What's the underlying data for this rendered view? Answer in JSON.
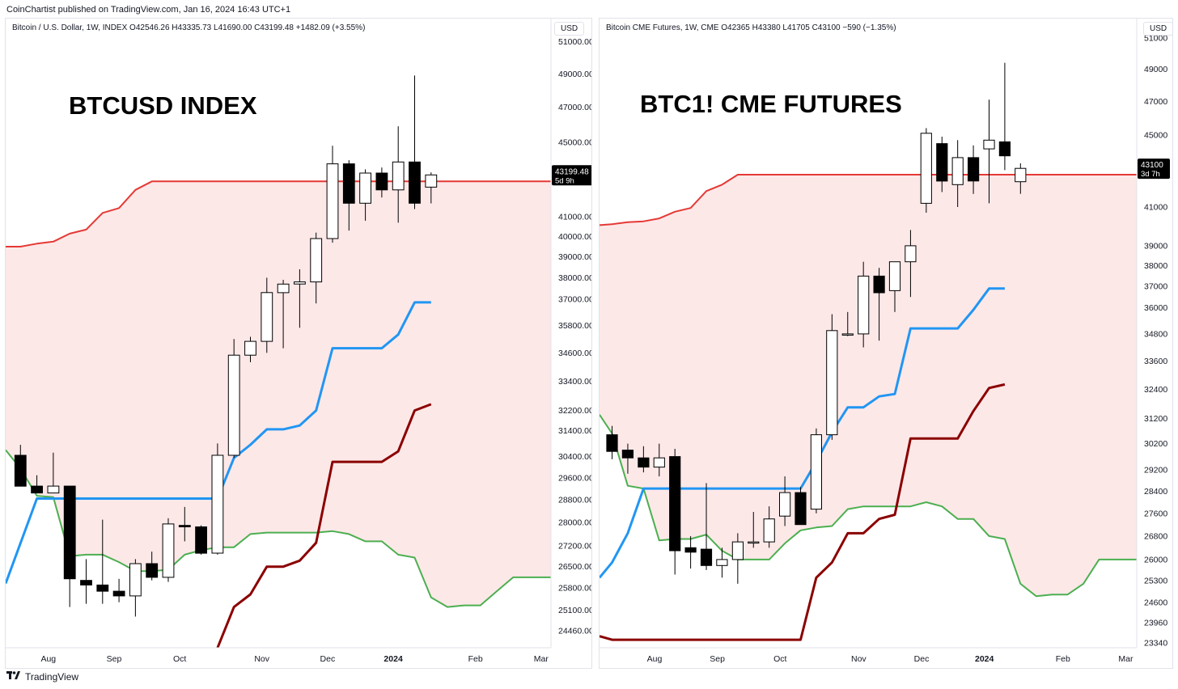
{
  "publish_line": "CoinChartist published on TradingView.com, Jan 16, 2024 16:43 UTC+1",
  "footer": {
    "brand": "TradingView",
    "logo_icon": "tradingview-logo-icon"
  },
  "colors": {
    "base": "#e53935",
    "span_b_fill": "#fde8e8",
    "conversion": "#2196f3",
    "lagging": "#8b0000",
    "span_a": "#4caf50",
    "candle_down": "#000000",
    "candle_up": "#ffffff"
  },
  "chart_data": [
    {
      "type": "candlestick",
      "legend": "Bitcoin / U.S. Dollar, 1W, INDEX  O42546.26  H43335.73  L41690.00  C43199.48  +1482.09 (+3.55%)",
      "currency": "USD",
      "title": "BTCUSD INDEX",
      "last_price": "43199.48",
      "last_timer": "5d 9h",
      "y_ticks": [
        "51000.00",
        "49000.00",
        "47000.00",
        "45000.00",
        "41000.00",
        "40000.00",
        "39000.00",
        "38000.00",
        "37000.00",
        "35800.00",
        "34600.00",
        "33400.00",
        "32200.00",
        "31400.00",
        "30400.00",
        "29600.00",
        "28800.00",
        "28000.00",
        "27200.00",
        "26500.00",
        "25800.00",
        "25100.00",
        "24460.00"
      ],
      "y_tick_values": [
        51000,
        49000,
        47000,
        45000,
        41000,
        40000,
        39000,
        38000,
        37000,
        35800,
        34600,
        33400,
        32200,
        31400,
        30400,
        29600,
        28800,
        28000,
        27200,
        26500,
        25800,
        25100,
        24460
      ],
      "ylim": [
        23950,
        52500
      ],
      "scale": "log",
      "x_ticks": [
        "Aug",
        "Sep",
        "Oct",
        "Nov",
        "Dec",
        "2024",
        "Feb",
        "Mar"
      ],
      "x_tick_index": [
        2.2,
        6.2,
        10.2,
        15.2,
        19.2,
        23.2,
        28.2,
        32.2
      ],
      "xlim": [
        -0.4,
        32.8
      ],
      "candles": [
        {
          "o": 30450,
          "h": 30850,
          "l": 29400,
          "c": 29300
        },
        {
          "o": 29300,
          "h": 29700,
          "l": 29050,
          "c": 29050
        },
        {
          "o": 29050,
          "h": 30550,
          "l": 29050,
          "c": 29300
        },
        {
          "o": 29300,
          "h": 29300,
          "l": 25200,
          "c": 26100
        },
        {
          "o": 26050,
          "h": 26750,
          "l": 25300,
          "c": 25900
        },
        {
          "o": 25900,
          "h": 28100,
          "l": 25300,
          "c": 25700
        },
        {
          "o": 25700,
          "h": 26100,
          "l": 25350,
          "c": 25550
        },
        {
          "o": 25550,
          "h": 26750,
          "l": 24900,
          "c": 26600
        },
        {
          "o": 26600,
          "h": 27000,
          "l": 26050,
          "c": 26150
        },
        {
          "o": 26150,
          "h": 28150,
          "l": 26000,
          "c": 27950
        },
        {
          "o": 27900,
          "h": 28550,
          "l": 27350,
          "c": 27850
        },
        {
          "o": 27850,
          "h": 27900,
          "l": 26900,
          "c": 26950
        },
        {
          "o": 26950,
          "h": 30900,
          "l": 26900,
          "c": 30450
        },
        {
          "o": 30450,
          "h": 35200,
          "l": 30350,
          "c": 34500
        },
        {
          "o": 34500,
          "h": 35300,
          "l": 34200,
          "c": 35100
        },
        {
          "o": 35100,
          "h": 38000,
          "l": 34600,
          "c": 37300
        },
        {
          "o": 37300,
          "h": 37900,
          "l": 34800,
          "c": 37700
        },
        {
          "o": 37700,
          "h": 38400,
          "l": 35700,
          "c": 37800
        },
        {
          "o": 37800,
          "h": 40200,
          "l": 36800,
          "c": 39900
        },
        {
          "o": 39900,
          "h": 44800,
          "l": 39700,
          "c": 43800
        },
        {
          "o": 43800,
          "h": 44000,
          "l": 40300,
          "c": 41700
        },
        {
          "o": 41700,
          "h": 43500,
          "l": 40800,
          "c": 43300
        },
        {
          "o": 43300,
          "h": 43600,
          "l": 42000,
          "c": 42400
        },
        {
          "o": 42400,
          "h": 45900,
          "l": 40700,
          "c": 43900
        },
        {
          "o": 43900,
          "h": 48900,
          "l": 41400,
          "c": 41700
        },
        {
          "o": 42546,
          "h": 43336,
          "l": 41690,
          "c": 43199
        }
      ],
      "ichimoku": {
        "base_line": [
          [
            -0.4,
            39500
          ],
          [
            0.5,
            39500
          ],
          [
            1.5,
            39650
          ],
          [
            2.5,
            39750
          ],
          [
            3.5,
            40150
          ],
          [
            4.5,
            40350
          ],
          [
            5.5,
            41200
          ],
          [
            6.5,
            41450
          ],
          [
            7.5,
            42400
          ],
          [
            8.5,
            42850
          ],
          [
            32.8,
            42850
          ]
        ],
        "conversion_line": [
          [
            -0.4,
            25950
          ],
          [
            1.5,
            28850
          ],
          [
            2.5,
            28850
          ],
          [
            12.5,
            28850
          ],
          [
            13.5,
            30350
          ],
          [
            14.5,
            30850
          ],
          [
            15.5,
            31450
          ],
          [
            16.5,
            31450
          ],
          [
            17.5,
            31600
          ],
          [
            18.5,
            32200
          ],
          [
            19.5,
            34800
          ],
          [
            20.5,
            34800
          ],
          [
            22.5,
            34800
          ],
          [
            23.5,
            35400
          ],
          [
            24.5,
            36850
          ],
          [
            25.5,
            36850
          ]
        ],
        "lagging_line": [
          [
            12.5,
            23950
          ],
          [
            13.5,
            25200
          ],
          [
            14.5,
            25600
          ],
          [
            15.5,
            26500
          ],
          [
            16.5,
            26500
          ],
          [
            17.5,
            26700
          ],
          [
            18.5,
            27300
          ],
          [
            19.5,
            30200
          ],
          [
            20.5,
            30200
          ],
          [
            22.5,
            30200
          ],
          [
            23.5,
            30600
          ],
          [
            24.5,
            32200
          ],
          [
            25.5,
            32450
          ]
        ],
        "span_a": [
          [
            -0.4,
            30650
          ],
          [
            0.5,
            29950
          ],
          [
            1.5,
            28950
          ],
          [
            2.5,
            28900
          ],
          [
            3.5,
            26850
          ],
          [
            4.5,
            26900
          ],
          [
            5.5,
            26900
          ],
          [
            6.5,
            26650
          ],
          [
            7.5,
            26350
          ],
          [
            8.5,
            26350
          ],
          [
            9.5,
            26400
          ],
          [
            10.5,
            26900
          ],
          [
            11.5,
            27050
          ],
          [
            12.5,
            27150
          ],
          [
            13.5,
            27150
          ],
          [
            14.5,
            27600
          ],
          [
            15.5,
            27650
          ],
          [
            16.5,
            27650
          ],
          [
            17.5,
            27650
          ],
          [
            18.5,
            27650
          ],
          [
            19.5,
            27700
          ],
          [
            20.5,
            27600
          ],
          [
            21.5,
            27350
          ],
          [
            22.5,
            27350
          ],
          [
            23.5,
            26900
          ],
          [
            24.5,
            26800
          ],
          [
            25.5,
            25500
          ],
          [
            26.5,
            25200
          ],
          [
            27.5,
            25250
          ],
          [
            28.5,
            25250
          ],
          [
            29.5,
            25700
          ],
          [
            30.5,
            26150
          ],
          [
            31.5,
            26150
          ],
          [
            32.8,
            26150
          ]
        ]
      }
    },
    {
      "type": "candlestick",
      "legend": "Bitcoin CME Futures, 1W, CME  O42365  H43380  L41705  C43100  −590 (−1.35%)",
      "currency": "USD",
      "title": "BTC1! CME FUTURES",
      "last_price": "43100",
      "last_timer": "3d 7h",
      "y_ticks": [
        "51000",
        "49000",
        "47000",
        "45000",
        "41000",
        "39000",
        "38000",
        "37000",
        "36000",
        "34800",
        "33600",
        "32400",
        "31200",
        "30200",
        "29200",
        "28400",
        "27600",
        "26800",
        "26000",
        "25300",
        "24600",
        "23960",
        "23340"
      ],
      "y_tick_values": [
        51000,
        49000,
        47000,
        45000,
        41000,
        39000,
        38000,
        37000,
        36000,
        34800,
        33600,
        32400,
        31200,
        30200,
        29200,
        28400,
        27600,
        26800,
        26000,
        25300,
        24600,
        23960,
        23340
      ],
      "ylim": [
        23200,
        52300
      ],
      "scale": "log",
      "x_ticks": [
        "Aug",
        "Sep",
        "Oct",
        "Nov",
        "Dec",
        "2024",
        "Feb",
        "Mar"
      ],
      "x_tick_index": [
        3.2,
        7.2,
        11.2,
        16.2,
        20.2,
        24.2,
        29.2,
        33.2
      ],
      "xlim": [
        -0.3,
        33.9
      ],
      "candles": [
        {
          "o": 30550,
          "h": 30900,
          "l": 29600,
          "c": 29900
        },
        {
          "o": 29950,
          "h": 30200,
          "l": 29050,
          "c": 29650
        },
        {
          "o": 29650,
          "h": 30100,
          "l": 29100,
          "c": 29300
        },
        {
          "o": 29300,
          "h": 30200,
          "l": 28950,
          "c": 29650
        },
        {
          "o": 29700,
          "h": 30000,
          "l": 25500,
          "c": 26300
        },
        {
          "o": 26400,
          "h": 26800,
          "l": 25700,
          "c": 26250
        },
        {
          "o": 26350,
          "h": 28700,
          "l": 25650,
          "c": 25800
        },
        {
          "o": 25800,
          "h": 26400,
          "l": 25400,
          "c": 26000
        },
        {
          "o": 26000,
          "h": 26900,
          "l": 25200,
          "c": 26600
        },
        {
          "o": 26600,
          "h": 27650,
          "l": 26400,
          "c": 26600
        },
        {
          "o": 26600,
          "h": 27850,
          "l": 26400,
          "c": 27400
        },
        {
          "o": 27500,
          "h": 28950,
          "l": 27150,
          "c": 28350
        },
        {
          "o": 28350,
          "h": 28550,
          "l": 27200,
          "c": 27200
        },
        {
          "o": 27750,
          "h": 30800,
          "l": 27600,
          "c": 30550
        },
        {
          "o": 30550,
          "h": 35700,
          "l": 30350,
          "c": 34950
        },
        {
          "o": 34800,
          "h": 35800,
          "l": 34700,
          "c": 34800
        },
        {
          "o": 34800,
          "h": 38200,
          "l": 34200,
          "c": 37500
        },
        {
          "o": 37500,
          "h": 37900,
          "l": 34500,
          "c": 36700
        },
        {
          "o": 36800,
          "h": 38200,
          "l": 35800,
          "c": 38200
        },
        {
          "o": 38200,
          "h": 39800,
          "l": 36500,
          "c": 39000
        },
        {
          "o": 41200,
          "h": 45400,
          "l": 40700,
          "c": 45100
        },
        {
          "o": 44500,
          "h": 44900,
          "l": 41800,
          "c": 42400
        },
        {
          "o": 42200,
          "h": 44700,
          "l": 41000,
          "c": 43700
        },
        {
          "o": 43700,
          "h": 44400,
          "l": 41700,
          "c": 42400
        },
        {
          "o": 44200,
          "h": 47100,
          "l": 41200,
          "c": 44700
        },
        {
          "o": 44600,
          "h": 49400,
          "l": 43000,
          "c": 43800
        },
        {
          "o": 42365,
          "h": 43380,
          "l": 41705,
          "c": 43100
        }
      ],
      "ichimoku": {
        "base_line": [
          [
            -0.3,
            40050
          ],
          [
            0.5,
            40100
          ],
          [
            1.5,
            40200
          ],
          [
            2.5,
            40250
          ],
          [
            3.5,
            40400
          ],
          [
            4.5,
            40750
          ],
          [
            5.5,
            40950
          ],
          [
            6.5,
            41850
          ],
          [
            7.5,
            42200
          ],
          [
            8.5,
            42750
          ],
          [
            33.9,
            42750
          ]
        ],
        "conversion_line": [
          [
            -0.3,
            25400
          ],
          [
            0.5,
            25900
          ],
          [
            1.5,
            26900
          ],
          [
            2.5,
            28500
          ],
          [
            12.5,
            28500
          ],
          [
            13.5,
            29500
          ],
          [
            14.5,
            30650
          ],
          [
            15.5,
            31650
          ],
          [
            16.5,
            31650
          ],
          [
            17.5,
            32100
          ],
          [
            18.5,
            32200
          ],
          [
            19.5,
            35050
          ],
          [
            20.5,
            35050
          ],
          [
            22.5,
            35050
          ],
          [
            23.5,
            35900
          ],
          [
            24.5,
            36900
          ],
          [
            25.5,
            36900
          ]
        ],
        "lagging_line": [
          [
            -0.3,
            23550
          ],
          [
            0.5,
            23440
          ],
          [
            12.5,
            23440
          ],
          [
            13.5,
            25400
          ],
          [
            14.5,
            25900
          ],
          [
            15.5,
            26900
          ],
          [
            16.5,
            26900
          ],
          [
            17.5,
            27400
          ],
          [
            18.5,
            27550
          ],
          [
            19.5,
            30400
          ],
          [
            20.5,
            30400
          ],
          [
            22.5,
            30400
          ],
          [
            23.5,
            31500
          ],
          [
            24.5,
            32450
          ],
          [
            25.5,
            32600
          ]
        ],
        "span_a": [
          [
            -0.3,
            31350
          ],
          [
            0.5,
            30600
          ],
          [
            1.5,
            28600
          ],
          [
            2.5,
            28500
          ],
          [
            3.5,
            26650
          ],
          [
            4.5,
            26700
          ],
          [
            5.5,
            26700
          ],
          [
            6.5,
            26850
          ],
          [
            7.5,
            26300
          ],
          [
            8.5,
            26000
          ],
          [
            9.5,
            26000
          ],
          [
            10.5,
            26000
          ],
          [
            11.5,
            26550
          ],
          [
            12.5,
            27000
          ],
          [
            13.5,
            27100
          ],
          [
            14.5,
            27150
          ],
          [
            15.5,
            27750
          ],
          [
            16.5,
            27850
          ],
          [
            17.5,
            27850
          ],
          [
            18.5,
            27850
          ],
          [
            19.5,
            27850
          ],
          [
            20.5,
            28000
          ],
          [
            21.5,
            27850
          ],
          [
            22.5,
            27400
          ],
          [
            23.5,
            27400
          ],
          [
            24.5,
            26800
          ],
          [
            25.5,
            26700
          ],
          [
            26.5,
            25200
          ],
          [
            27.5,
            24800
          ],
          [
            28.5,
            24850
          ],
          [
            29.5,
            24850
          ],
          [
            30.5,
            25200
          ],
          [
            31.5,
            26000
          ],
          [
            32.5,
            26000
          ],
          [
            33.9,
            26000
          ]
        ]
      }
    }
  ]
}
